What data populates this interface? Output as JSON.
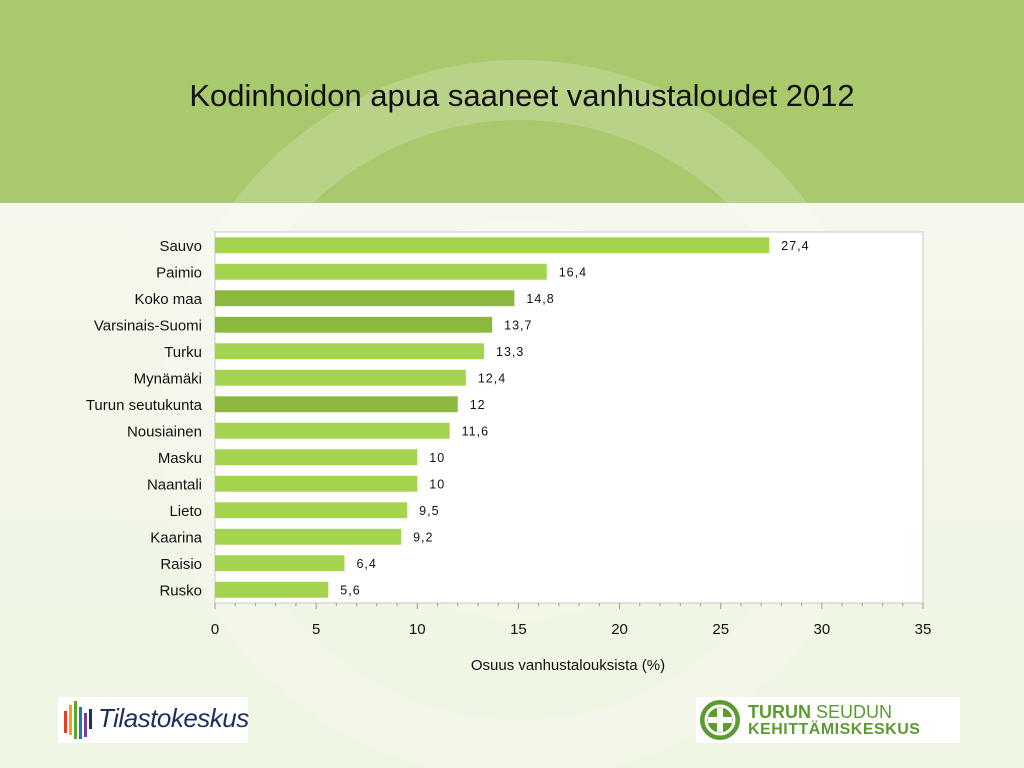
{
  "page": {
    "title": "Kodinhoidon apua saaneet vanhustaloudet 2012"
  },
  "colors": {
    "header": "#a9c96d",
    "bar_light": "#a4d34e",
    "bar_dark": "#8cb83e"
  },
  "chart_data": {
    "type": "bar",
    "orientation": "horizontal",
    "title": "Kodinhoidon apua saaneet vanhustaloudet 2012",
    "xlabel": "Osuus vanhustalouksista (%)",
    "ylabel": "",
    "xlim": [
      0,
      35
    ],
    "xticks": [
      0,
      5,
      10,
      15,
      20,
      25,
      30,
      35
    ],
    "grid": false,
    "legend": "none",
    "categories": [
      "Sauvo",
      "Paimio",
      "Koko maa",
      "Varsinais-Suomi",
      "Turku",
      "Mynämäki",
      "Turun seutukunta",
      "Nousiainen",
      "Masku",
      "Naantali",
      "Lieto",
      "Kaarina",
      "Raisio",
      "Rusko"
    ],
    "values": [
      27.4,
      16.4,
      14.8,
      13.7,
      13.3,
      12.4,
      12,
      11.6,
      10,
      10,
      9.5,
      9.2,
      6.4,
      5.6
    ],
    "data_labels": [
      "27,4",
      "16,4",
      "14,8",
      "13,7",
      "13,3",
      "12,4",
      "12",
      "11,6",
      "10",
      "10",
      "9,5",
      "9,2",
      "6,4",
      "5,6"
    ],
    "highlighted": [
      "Koko maa",
      "Varsinais-Suomi",
      "Turun seutukunta"
    ]
  },
  "logos": {
    "left": {
      "name": "Tilastokeskus",
      "icon": "tilastokeskus-logo-icon"
    },
    "right": {
      "line1_bold": "TURUN",
      "line1_light": "SEUDUN",
      "line2": "KEHITTÄMISKESKUS",
      "icon": "tsk-emblem-icon"
    }
  }
}
